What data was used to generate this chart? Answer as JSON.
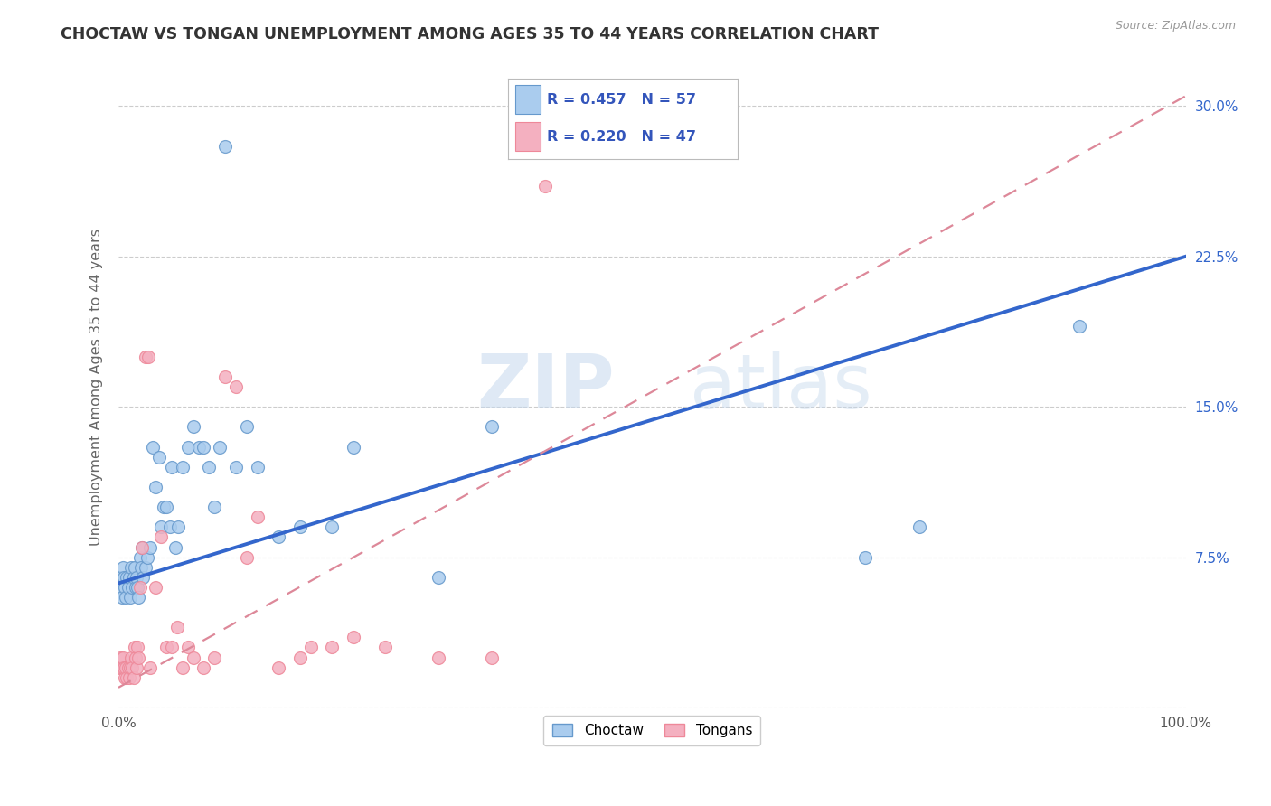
{
  "title": "CHOCTAW VS TONGAN UNEMPLOYMENT AMONG AGES 35 TO 44 YEARS CORRELATION CHART",
  "source": "Source: ZipAtlas.com",
  "ylabel": "Unemployment Among Ages 35 to 44 years",
  "background_color": "#ffffff",
  "plot_background": "#ffffff",
  "grid_color": "#cccccc",
  "xlim": [
    0.0,
    1.0
  ],
  "ylim": [
    0.0,
    0.32
  ],
  "xticks": [
    0.0,
    0.2,
    0.4,
    0.6,
    0.8,
    1.0
  ],
  "xticklabels": [
    "0.0%",
    "",
    "",
    "",
    "",
    "100.0%"
  ],
  "yticks": [
    0.0,
    0.075,
    0.15,
    0.225,
    0.3
  ],
  "yticklabels_right": [
    "",
    "7.5%",
    "15.0%",
    "22.5%",
    "30.0%"
  ],
  "choctaw_color": "#aaccee",
  "tongan_color": "#f4b0c0",
  "choctaw_edge": "#6699cc",
  "tongan_edge": "#ee8899",
  "choctaw_R": 0.457,
  "choctaw_N": 57,
  "tongan_R": 0.22,
  "tongan_N": 47,
  "legend_color": "#3355bb",
  "regression_blue": "#3366cc",
  "regression_pink": "#dd8899",
  "watermark_zip": "ZIP",
  "watermark_atlas": "atlas",
  "choctaw_x": [
    0.001,
    0.002,
    0.003,
    0.004,
    0.005,
    0.006,
    0.007,
    0.008,
    0.009,
    0.01,
    0.011,
    0.012,
    0.013,
    0.014,
    0.015,
    0.016,
    0.017,
    0.018,
    0.019,
    0.02,
    0.021,
    0.022,
    0.023,
    0.025,
    0.027,
    0.03,
    0.032,
    0.035,
    0.038,
    0.04,
    0.042,
    0.045,
    0.048,
    0.05,
    0.053,
    0.056,
    0.06,
    0.065,
    0.07,
    0.075,
    0.08,
    0.085,
    0.09,
    0.095,
    0.1,
    0.11,
    0.12,
    0.13,
    0.15,
    0.17,
    0.2,
    0.22,
    0.3,
    0.35,
    0.7,
    0.75,
    0.9
  ],
  "choctaw_y": [
    0.065,
    0.06,
    0.055,
    0.07,
    0.065,
    0.06,
    0.055,
    0.065,
    0.06,
    0.065,
    0.055,
    0.07,
    0.06,
    0.065,
    0.07,
    0.06,
    0.065,
    0.06,
    0.055,
    0.075,
    0.07,
    0.08,
    0.065,
    0.07,
    0.075,
    0.08,
    0.13,
    0.11,
    0.125,
    0.09,
    0.1,
    0.1,
    0.09,
    0.12,
    0.08,
    0.09,
    0.12,
    0.13,
    0.14,
    0.13,
    0.13,
    0.12,
    0.1,
    0.13,
    0.28,
    0.12,
    0.14,
    0.12,
    0.085,
    0.09,
    0.09,
    0.13,
    0.065,
    0.14,
    0.075,
    0.09,
    0.19
  ],
  "tongan_x": [
    0.001,
    0.002,
    0.003,
    0.004,
    0.005,
    0.006,
    0.007,
    0.008,
    0.009,
    0.01,
    0.011,
    0.012,
    0.013,
    0.014,
    0.015,
    0.016,
    0.017,
    0.018,
    0.019,
    0.02,
    0.022,
    0.025,
    0.028,
    0.03,
    0.035,
    0.04,
    0.045,
    0.05,
    0.055,
    0.06,
    0.065,
    0.07,
    0.08,
    0.09,
    0.1,
    0.11,
    0.12,
    0.13,
    0.15,
    0.17,
    0.18,
    0.2,
    0.22,
    0.25,
    0.3,
    0.35,
    0.4
  ],
  "tongan_y": [
    0.02,
    0.025,
    0.02,
    0.025,
    0.02,
    0.015,
    0.02,
    0.015,
    0.02,
    0.015,
    0.02,
    0.025,
    0.02,
    0.015,
    0.03,
    0.025,
    0.02,
    0.03,
    0.025,
    0.06,
    0.08,
    0.175,
    0.175,
    0.02,
    0.06,
    0.085,
    0.03,
    0.03,
    0.04,
    0.02,
    0.03,
    0.025,
    0.02,
    0.025,
    0.165,
    0.16,
    0.075,
    0.095,
    0.02,
    0.025,
    0.03,
    0.03,
    0.035,
    0.03,
    0.025,
    0.025,
    0.26
  ],
  "choctaw_line_x": [
    0.0,
    1.0
  ],
  "choctaw_line_y": [
    0.062,
    0.225
  ],
  "tongan_line_x": [
    0.0,
    1.0
  ],
  "tongan_line_y": [
    0.01,
    0.305
  ]
}
